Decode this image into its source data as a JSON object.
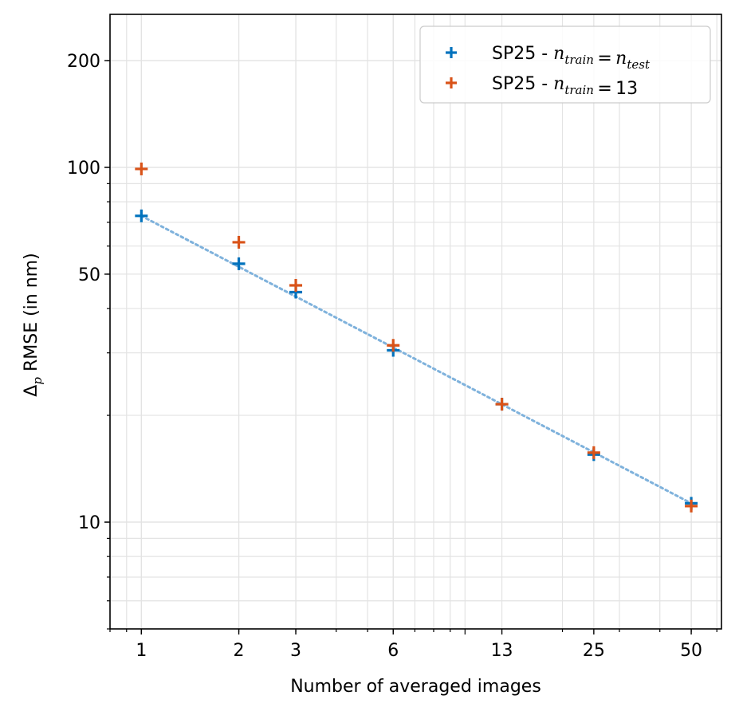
{
  "chart_data": {
    "type": "scatter",
    "xlabel": "Number of averaged images",
    "ylabel_symbol": "Δ",
    "ylabel_sub": "p",
    "ylabel_text": " RMSE (in nm)",
    "xscale": "log",
    "yscale": "log",
    "xlim": [
      0.8,
      62
    ],
    "ylim": [
      5,
      270
    ],
    "grid": true,
    "x_ticks": [
      1,
      2,
      3,
      6,
      13,
      25,
      50
    ],
    "x_tick_labels": [
      "1",
      "2",
      "3",
      "6",
      "13",
      "25",
      "50"
    ],
    "y_ticks": [
      10,
      50,
      100,
      200
    ],
    "y_tick_labels": [
      "10",
      "50",
      "100",
      "200"
    ],
    "legend_position": "top-right",
    "series": [
      {
        "name": "SP25 - n_train = n_test",
        "label_prefix": "SP25 - ",
        "label_math": [
          [
            "n",
            "train"
          ],
          [
            "=",
            ""
          ],
          [
            "n",
            "test"
          ]
        ],
        "color": "#0072bd",
        "marker": "plus",
        "x": [
          1,
          2,
          3,
          6,
          13,
          25,
          50
        ],
        "y": [
          73,
          53.5,
          44.5,
          30.5,
          21.5,
          15.5,
          11.3
        ]
      },
      {
        "name": "SP25 - n_train = 13",
        "label_prefix": "SP25 - ",
        "label_math": [
          [
            "n",
            "train"
          ],
          [
            "=",
            ""
          ],
          [
            "13",
            ""
          ]
        ],
        "color": "#d95319",
        "marker": "plus",
        "x": [
          1,
          2,
          3,
          6,
          13,
          25,
          50
        ],
        "y": [
          99,
          61.5,
          46.5,
          31.5,
          21.5,
          15.7,
          11.1
        ]
      }
    ],
    "fit_line": {
      "color": "#7fb2dc",
      "style": "dotted",
      "x": [
        1,
        50
      ],
      "y": [
        73,
        11.3
      ]
    }
  }
}
